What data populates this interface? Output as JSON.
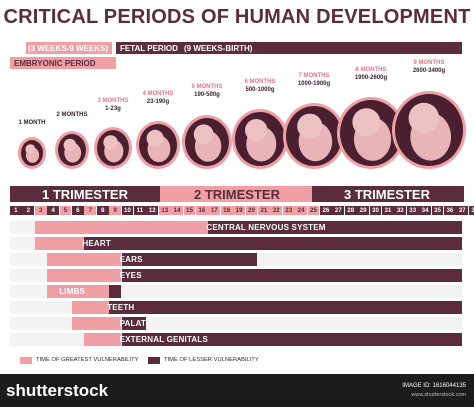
{
  "title": "CRITICAL PERIODS OF HUMAN DEVELOPMENT",
  "periods": {
    "embryonic_weeks": "(3 WEEKS-9 WEEKS)",
    "fetal": "FETAL PERIOD",
    "fetal_weeks": "(9 WEEKS-BIRTH)",
    "embryonic": "EMBRYONIC PERIOD"
  },
  "months": [
    {
      "label": "1 MONTH",
      "weight": ""
    },
    {
      "label": "2 MONTHS",
      "weight": ""
    },
    {
      "label": "3 MONTHS",
      "weight": "1-23g"
    },
    {
      "label": "4 MONTHS",
      "weight": "23-190g"
    },
    {
      "label": "5 MONTHS",
      "weight": "190-500g"
    },
    {
      "label": "6 MONTHS",
      "weight": "500-1000g"
    },
    {
      "label": "7 MONTHS",
      "weight": "1000-1900g"
    },
    {
      "label": "8 MONTHS",
      "weight": "1900-2600g"
    },
    {
      "label": "9 MONTHS",
      "weight": "2600-3400g"
    }
  ],
  "trimesters": [
    "1 TRIMESTER",
    "2 TRIMESTER",
    "3 TRIMESTER"
  ],
  "weeks": [
    "1",
    "2",
    "3",
    "4",
    "5",
    "6",
    "7",
    "8",
    "9",
    "10",
    "11",
    "12",
    "13",
    "14",
    "15",
    "16",
    "17",
    "18",
    "19",
    "20",
    "21",
    "22",
    "23",
    "24",
    "25",
    "26",
    "27",
    "28",
    "29",
    "30",
    "31",
    "32",
    "33",
    "34",
    "35",
    "36",
    "37",
    "38"
  ],
  "systems": [
    {
      "name": "CENTRAL NERVOUS SYSTEM",
      "greatest_weeks": [
        3,
        16
      ],
      "lesser_weeks": [
        17,
        38
      ]
    },
    {
      "name": "HEART",
      "greatest_weeks": [
        3,
        6
      ],
      "lesser_weeks": [
        7,
        38
      ]
    },
    {
      "name": "EARS",
      "greatest_weeks": [
        4,
        9
      ],
      "lesser_weeks": [
        10,
        20
      ]
    },
    {
      "name": "EYES",
      "greatest_weeks": [
        4,
        9
      ],
      "lesser_weeks": [
        10,
        38
      ]
    },
    {
      "name": "LIMBS",
      "greatest_weeks": [
        4,
        8
      ],
      "lesser_weeks": [
        9,
        9
      ]
    },
    {
      "name": "TEETH",
      "greatest_weeks": [
        6,
        8
      ],
      "lesser_weeks": [
        9,
        38
      ]
    },
    {
      "name": "PALATE",
      "greatest_weeks": [
        6,
        9
      ],
      "lesser_weeks": [
        10,
        11
      ]
    },
    {
      "name": "EXTERNAL GENITALS",
      "greatest_weeks": [
        7,
        9
      ],
      "lesser_weeks": [
        10,
        38
      ]
    }
  ],
  "legend": {
    "greatest": "TIME OF GREATEST VULNERABILITY",
    "lesser": "TIME OF LESSER VULNERABILITY"
  },
  "footer": {
    "brand": "shutterstock",
    "image_id": "IMAGE ID: 1616044135",
    "site": "www.shutterstock.com"
  },
  "colors": {
    "dark": "#5b2c3c",
    "pink": "#f0a0a4",
    "light_pink": "#f5c9c8",
    "embryo": "#e8b4b8"
  }
}
